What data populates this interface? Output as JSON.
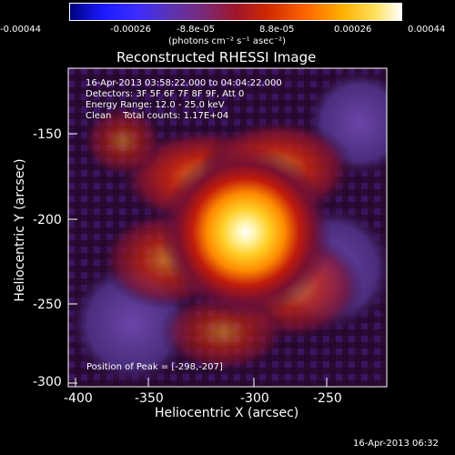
{
  "colorbar": {
    "ticks": [
      "-0.00044",
      "-0.00026",
      "-8.8e-05",
      "8.8e-05",
      "0.00026",
      "0.00044"
    ],
    "units": "(photons cm⁻² s⁻¹ asec⁻²)"
  },
  "plot": {
    "title": "Reconstructed RHESSI Image",
    "xlabel": "Heliocentric X (arcsec)",
    "ylabel": "Heliocentric Y (arcsec)",
    "xticks": [
      "-400",
      "-350",
      "-300",
      "-250"
    ],
    "yticks": [
      "-150",
      "-200",
      "-250",
      "-300"
    ],
    "overlay": {
      "line1": "16-Apr-2013 03:58:22.000 to 04:04:22.000",
      "line2": "Detectors: 3F 5F 6F 7F 8F 9F, Att 0",
      "line3": "Energy Range: 12.0 - 25.0 keV",
      "line4": "Clean    Total counts: 1.17E+04",
      "peak": "Position of Peak = [-298,-207]"
    },
    "footer": "16-Apr-2013 06:32"
  },
  "image_data": {
    "colormap": "blue-purple-red-yellow-white",
    "peak_position": [
      -298,
      -207
    ]
  }
}
